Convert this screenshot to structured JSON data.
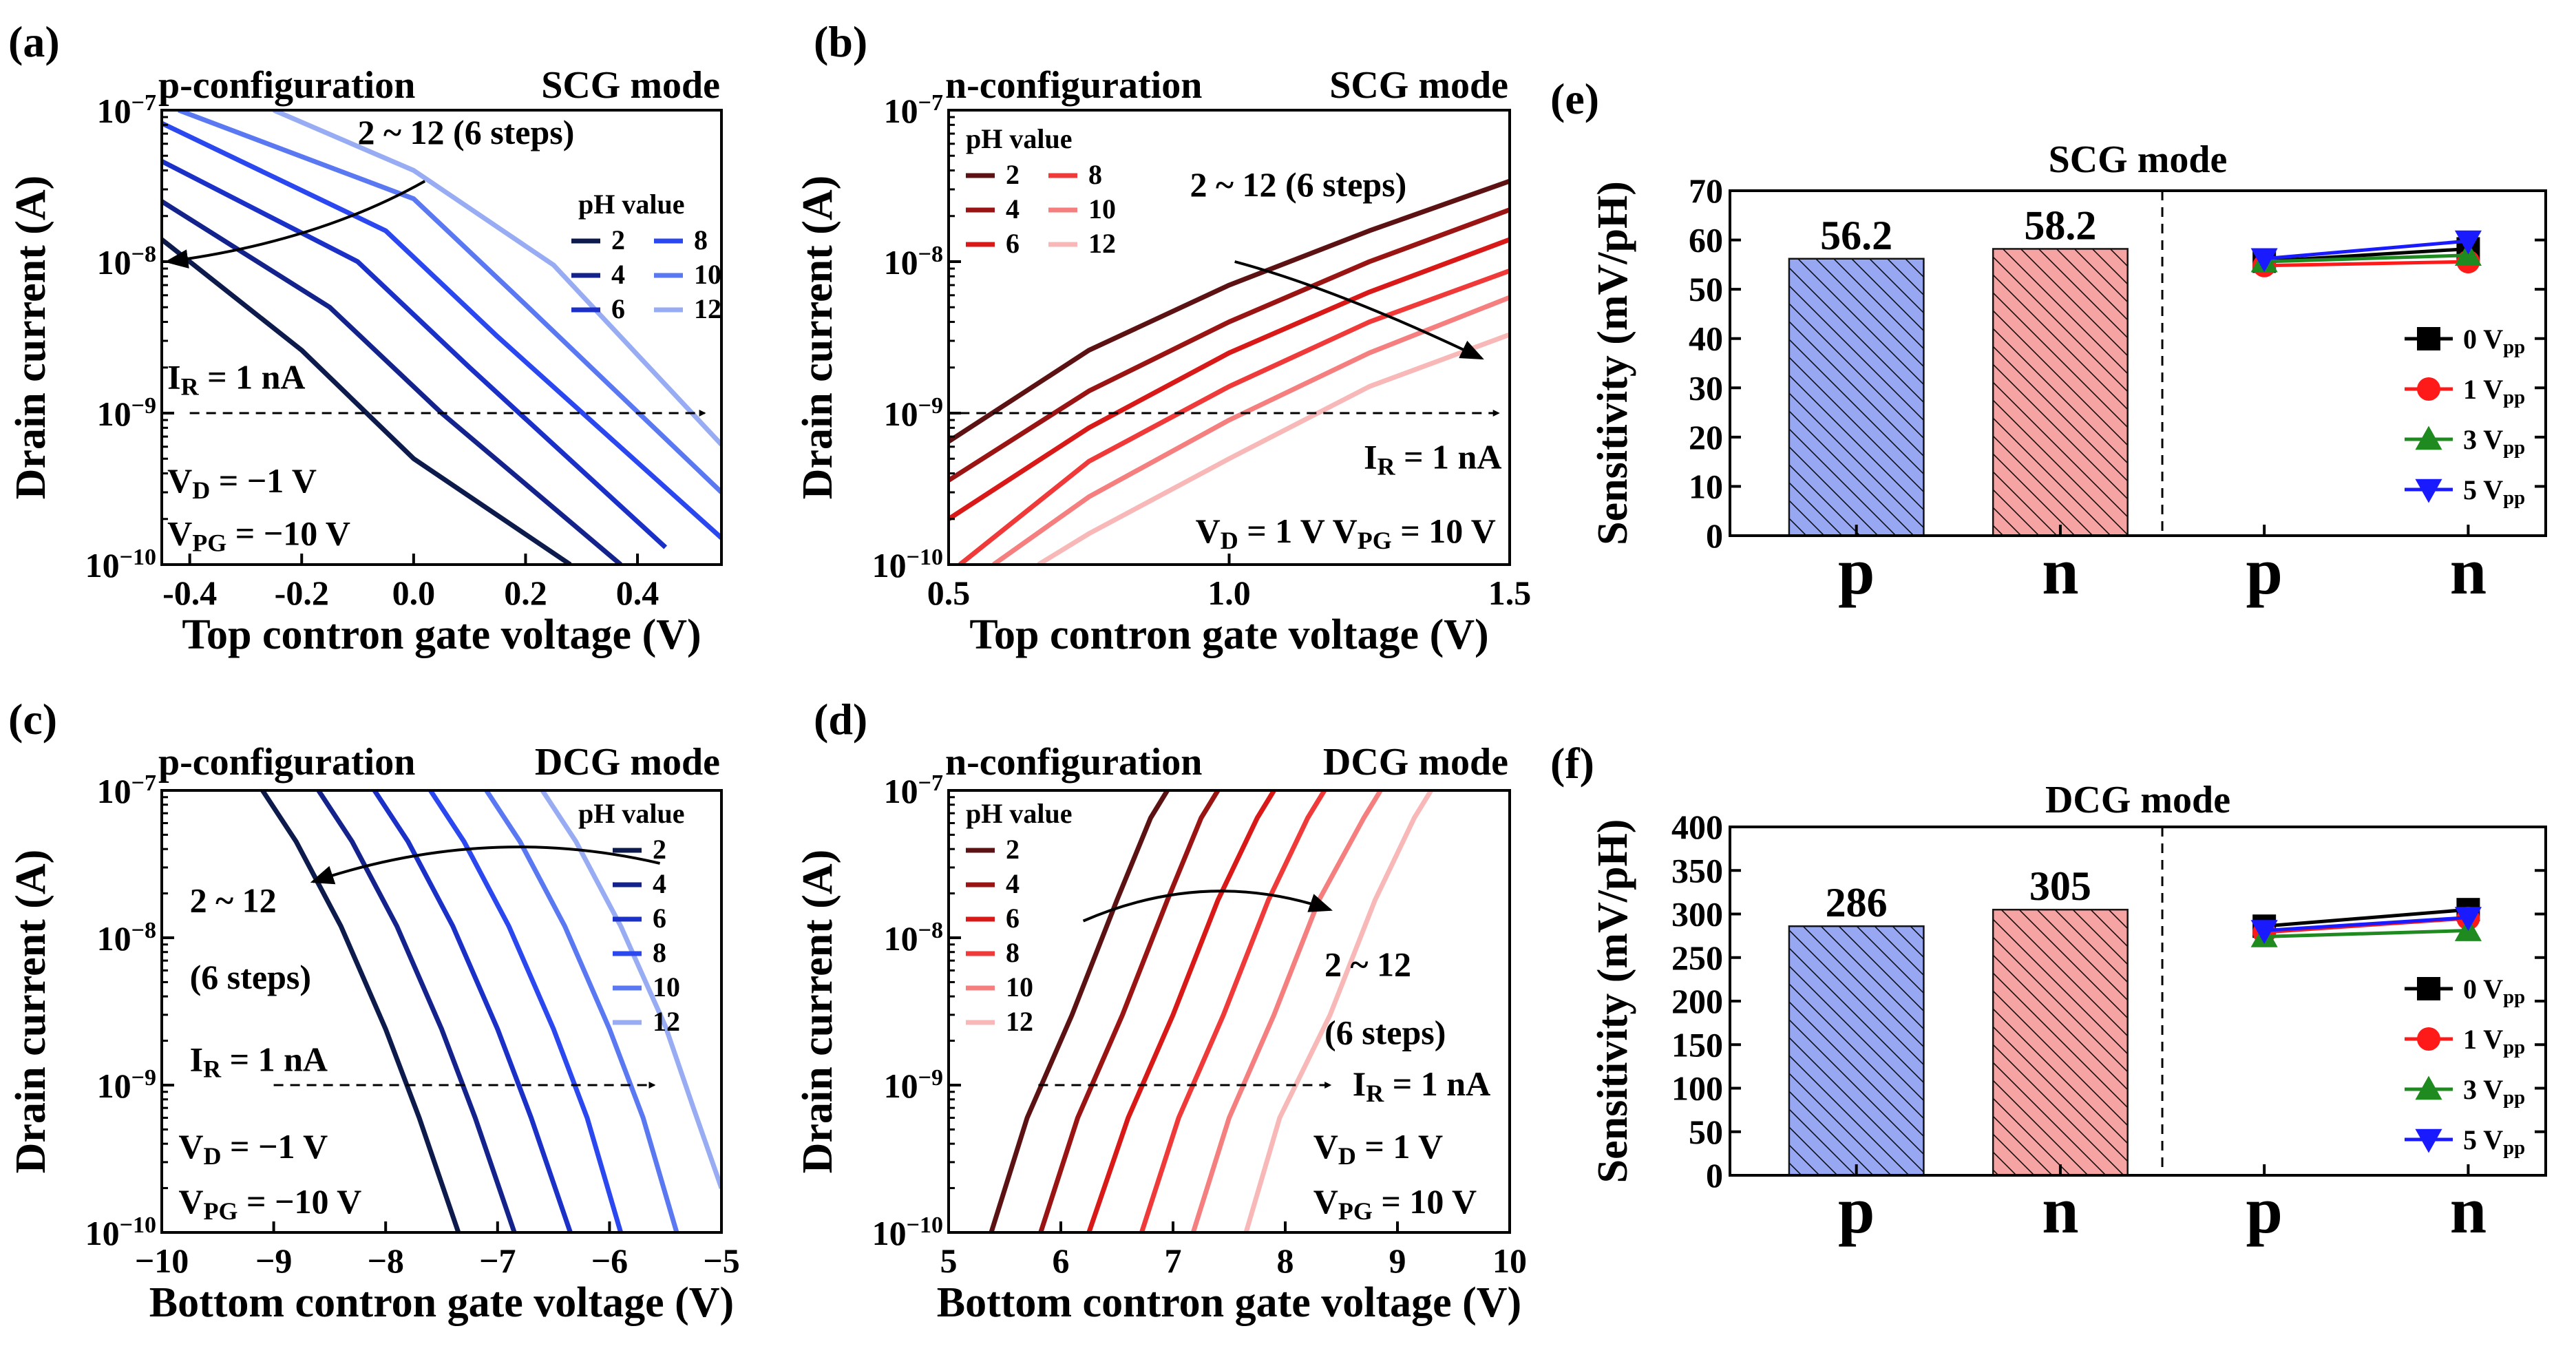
{
  "colors": {
    "p_text": "#1e22ff",
    "n_text": "#ee1111",
    "p_shades": [
      "#0d1b4c",
      "#14238b",
      "#1b30c6",
      "#2b47ef",
      "#5a78f2",
      "#98acf3"
    ],
    "n_shades": [
      "#5c1212",
      "#9a1414",
      "#d91818",
      "#f03a3a",
      "#f57f7f",
      "#f8b8b8"
    ],
    "bar_p": "#97a7f2",
    "bar_n": "#f5a3a3",
    "vpp": [
      "#000000",
      "#ff1a1a",
      "#1f8a1f",
      "#1a1aff"
    ]
  },
  "chart_data": [
    {
      "id": "a",
      "panel_label": "(a)",
      "type": "line",
      "xscale": "linear",
      "yscale": "log",
      "title_left": "p-configuration",
      "title_right": "SCG mode",
      "title_left_color": "p",
      "xlabel": "Top contron gate voltage (V)",
      "ylabel": "Drain current (A)",
      "xlim": [
        -0.45,
        0.55
      ],
      "ylim": [
        1e-10,
        1e-07
      ],
      "xticks": [
        -0.4,
        -0.2,
        0.0,
        0.2,
        0.4
      ],
      "xtick_labels": [
        "-0.4",
        "-0.2",
        "0.0",
        "0.2",
        "0.4"
      ],
      "yticks": [
        -10,
        -9,
        -8,
        -7
      ],
      "legend_title": "pH value",
      "legend": [
        "2",
        "4",
        "6",
        "8",
        "10",
        "12"
      ],
      "legend_order": [
        0,
        3,
        1,
        4,
        2,
        5
      ],
      "legend_cols": 2,
      "shades": "p",
      "series": [
        {
          "name": "2",
          "x": [
            -0.45,
            -0.2,
            0.0,
            0.28
          ],
          "y": [
            1.4e-08,
            2.6e-09,
            5e-10,
            1e-10
          ]
        },
        {
          "name": "4",
          "x": [
            -0.45,
            -0.15,
            0.05,
            0.37
          ],
          "y": [
            2.5e-08,
            5e-09,
            1e-09,
            1e-10
          ]
        },
        {
          "name": "6",
          "x": [
            -0.45,
            -0.1,
            0.1,
            0.45
          ],
          "y": [
            4.6e-08,
            1e-08,
            2e-09,
            1.3e-10
          ]
        },
        {
          "name": "8",
          "x": [
            -0.45,
            -0.05,
            0.15,
            0.55
          ],
          "y": [
            8.2e-08,
            1.6e-08,
            3.2e-09,
            1.5e-10
          ]
        },
        {
          "name": "10",
          "x": [
            -0.42,
            0.0,
            0.2,
            0.55
          ],
          "y": [
            1e-07,
            2.6e-08,
            5.2e-09,
            3e-10
          ]
        },
        {
          "name": "12",
          "x": [
            -0.25,
            0.0,
            0.25,
            0.55
          ],
          "y": [
            1e-07,
            4e-08,
            9.5e-09,
            6.2e-10
          ]
        }
      ],
      "ref_line": {
        "y": 1e-09,
        "x": [
          -0.4,
          0.52
        ]
      },
      "arrow": {
        "from": [
          0.02,
          3.4e-08
        ],
        "to": [
          -0.44,
          1e-08
        ]
      },
      "texts": [
        {
          "key": "arrow_label",
          "value": "2 ~ 12 (6 steps)",
          "x": -0.1,
          "y": 6e-08
        },
        {
          "key": "ir_label",
          "value": "I_R = 1 nA",
          "x": -0.44,
          "y": 1.45e-09
        },
        {
          "key": "vd_label",
          "value": "V_D = −1 V",
          "x": -0.44,
          "y": 3e-10
        },
        {
          "key": "vpg_label",
          "value": "V_PG = −10 V",
          "x": -0.44,
          "y": 1.35e-10
        }
      ]
    },
    {
      "id": "b",
      "panel_label": "(b)",
      "type": "line",
      "xscale": "linear",
      "yscale": "log",
      "title_left": "n-configuration",
      "title_right": "SCG mode",
      "title_left_color": "n",
      "xlabel": "Top contron gate voltage (V)",
      "ylabel": "Drain current (A)",
      "xlim": [
        0.5,
        1.5
      ],
      "ylim": [
        1e-10,
        1e-07
      ],
      "xticks": [
        0.5,
        1.0,
        1.5
      ],
      "xtick_labels": [
        "0.5",
        "1.0",
        "1.5"
      ],
      "yticks": [
        -10,
        -9,
        -8,
        -7
      ],
      "legend_title": "pH value",
      "legend": [
        "2",
        "4",
        "6",
        "8",
        "10",
        "12"
      ],
      "legend_order": [
        0,
        3,
        1,
        4,
        2,
        5
      ],
      "legend_cols": 2,
      "shades": "n",
      "series": [
        {
          "name": "2",
          "x": [
            0.5,
            0.75,
            1.0,
            1.25,
            1.5
          ],
          "y": [
            6.5e-10,
            2.6e-09,
            7e-09,
            1.6e-08,
            3.4e-08
          ]
        },
        {
          "name": "4",
          "x": [
            0.5,
            0.75,
            1.0,
            1.25,
            1.5
          ],
          "y": [
            3.6e-10,
            1.4e-09,
            4e-09,
            1e-08,
            2.2e-08
          ]
        },
        {
          "name": "6",
          "x": [
            0.5,
            0.75,
            1.0,
            1.25,
            1.5
          ],
          "y": [
            2e-10,
            8e-10,
            2.5e-09,
            6.3e-09,
            1.4e-08
          ]
        },
        {
          "name": "8",
          "x": [
            0.52,
            0.75,
            1.0,
            1.25,
            1.5
          ],
          "y": [
            1e-10,
            4.8e-10,
            1.5e-09,
            4e-09,
            8.7e-09
          ]
        },
        {
          "name": "10",
          "x": [
            0.58,
            0.75,
            1.0,
            1.25,
            1.5
          ],
          "y": [
            1e-10,
            2.8e-10,
            9e-10,
            2.5e-09,
            5.8e-09
          ]
        },
        {
          "name": "12",
          "x": [
            0.66,
            0.75,
            1.0,
            1.25,
            1.5
          ],
          "y": [
            1e-10,
            1.6e-10,
            5e-10,
            1.5e-09,
            3.3e-09
          ]
        }
      ],
      "ref_line": {
        "y": 1e-09,
        "x": [
          0.52,
          1.48
        ]
      },
      "arrow": {
        "from": [
          1.01,
          1e-08
        ],
        "to": [
          1.45,
          2.3e-09
        ]
      },
      "texts": [
        {
          "key": "arrow_label",
          "value": "2 ~ 12 (6 steps)",
          "x": 0.93,
          "y": 2.7e-08
        },
        {
          "key": "ir_label",
          "value": "I_R = 1 nA",
          "x": 1.24,
          "y": 4.3e-10
        },
        {
          "key": "vd_label",
          "value": "V_D = 1 V  V_PG =  10 V",
          "x": 0.94,
          "y": 1.4e-10
        }
      ]
    },
    {
      "id": "c",
      "panel_label": "(c)",
      "type": "line",
      "xscale": "linear",
      "yscale": "log",
      "title_left": "p-configuration",
      "title_right": "DCG mode",
      "title_left_color": "p",
      "xlabel": "Bottom contron gate voltage (V)",
      "ylabel": "Drain current (A)",
      "xlim": [
        -10,
        -5
      ],
      "ylim": [
        1e-10,
        1e-07
      ],
      "xticks": [
        -10,
        -9,
        -8,
        -7,
        -6,
        -5
      ],
      "xtick_labels": [
        "−10",
        "−9",
        "−8",
        "−7",
        "−6",
        "−5"
      ],
      "yticks": [
        -10,
        -9,
        -8,
        -7
      ],
      "legend_title": "pH value",
      "legend": [
        "2",
        "4",
        "6",
        "8",
        "10",
        "12"
      ],
      "legend_order": [
        0,
        1,
        2,
        3,
        4,
        5
      ],
      "legend_cols": 1,
      "shades": "p",
      "series": [
        {
          "name": "2",
          "x": [
            -9.1,
            -8.8,
            -8.4,
            -8.0,
            -7.7,
            -7.35
          ],
          "y": [
            1e-07,
            4.5e-08,
            1.2e-08,
            2.4e-09,
            6e-10,
            1e-10
          ]
        },
        {
          "name": "4",
          "x": [
            -8.6,
            -8.3,
            -7.9,
            -7.5,
            -7.2,
            -6.85
          ],
          "y": [
            1e-07,
            4.5e-08,
            1.2e-08,
            2.4e-09,
            6e-10,
            1e-10
          ]
        },
        {
          "name": "6",
          "x": [
            -8.1,
            -7.8,
            -7.4,
            -7.0,
            -6.7,
            -6.35
          ],
          "y": [
            1e-07,
            4.5e-08,
            1.2e-08,
            2.4e-09,
            6e-10,
            1e-10
          ]
        },
        {
          "name": "8",
          "x": [
            -7.6,
            -7.3,
            -6.9,
            -6.5,
            -6.2,
            -5.9
          ],
          "y": [
            1e-07,
            4.5e-08,
            1.2e-08,
            2.4e-09,
            6e-10,
            1e-10
          ]
        },
        {
          "name": "10",
          "x": [
            -7.1,
            -6.8,
            -6.4,
            -6.0,
            -5.7,
            -5.4
          ],
          "y": [
            1e-07,
            4.5e-08,
            1.2e-08,
            2.4e-09,
            6e-10,
            1e-10
          ]
        },
        {
          "name": "12",
          "x": [
            -6.6,
            -6.3,
            -5.9,
            -5.5,
            -5.25,
            -5.0
          ],
          "y": [
            1e-07,
            4.5e-08,
            1.2e-08,
            2.5e-09,
            7e-10,
            2e-10
          ]
        }
      ],
      "ref_line": {
        "y": 1e-09,
        "x": [
          -9.0,
          -5.6
        ]
      },
      "arrow": {
        "from": [
          -5.55,
          3.2e-08
        ],
        "to": [
          -8.65,
          2.4e-08
        ]
      },
      "arrow_ctrl": [
        -7.1,
        6e-08
      ],
      "texts": [
        {
          "key": "arrow_label",
          "value": "2 ~ 12",
          "x": -9.75,
          "y": 1.5e-08
        },
        {
          "key": "arrow_label2",
          "value": "(6 steps)",
          "x": -9.75,
          "y": 4.5e-09
        },
        {
          "key": "ir_label",
          "value": "I_R = 1 nA",
          "x": -9.75,
          "y": 1.25e-09
        },
        {
          "key": "vd_label",
          "value": "V_D = −1 V",
          "x": -9.85,
          "y": 3.2e-10
        },
        {
          "key": "vpg_label",
          "value": "V_PG = −10 V",
          "x": -9.85,
          "y": 1.35e-10
        }
      ]
    },
    {
      "id": "d",
      "panel_label": "(d)",
      "type": "line",
      "xscale": "linear",
      "yscale": "log",
      "title_left": "n-configuration",
      "title_right": "DCG mode",
      "title_left_color": "n",
      "xlabel": "Bottom contron gate voltage (V)",
      "ylabel": "Drain current (A)",
      "xlim": [
        5,
        10
      ],
      "ylim": [
        1e-10,
        1e-07
      ],
      "xticks": [
        5,
        6,
        7,
        8,
        9,
        10
      ],
      "xtick_labels": [
        "5",
        "6",
        "7",
        "8",
        "9",
        "10"
      ],
      "yticks": [
        -10,
        -9,
        -8,
        -7
      ],
      "legend_title": "pH value",
      "legend": [
        "2",
        "4",
        "6",
        "8",
        "10",
        "12"
      ],
      "legend_order": [
        0,
        1,
        2,
        3,
        4,
        5
      ],
      "legend_cols": 1,
      "shades": "n",
      "series": [
        {
          "name": "2",
          "x": [
            5.38,
            5.7,
            6.1,
            6.5,
            6.8,
            6.95
          ],
          "y": [
            1e-10,
            6e-10,
            3e-09,
            1.8e-08,
            6.5e-08,
            1e-07
          ]
        },
        {
          "name": "4",
          "x": [
            5.82,
            6.15,
            6.55,
            6.95,
            7.25,
            7.4
          ],
          "y": [
            1e-10,
            6e-10,
            3e-09,
            1.8e-08,
            6.5e-08,
            1e-07
          ]
        },
        {
          "name": "6",
          "x": [
            6.25,
            6.6,
            7.0,
            7.4,
            7.75,
            7.9
          ],
          "y": [
            1e-10,
            6e-10,
            3e-09,
            1.8e-08,
            6.5e-08,
            1e-07
          ]
        },
        {
          "name": "8",
          "x": [
            6.72,
            7.05,
            7.45,
            7.85,
            8.2,
            8.35
          ],
          "y": [
            1e-10,
            6e-10,
            3e-09,
            1.8e-08,
            6.5e-08,
            1e-07
          ]
        },
        {
          "name": "10",
          "x": [
            7.18,
            7.5,
            7.9,
            8.3,
            8.7,
            8.85
          ],
          "y": [
            1e-10,
            6e-10,
            3e-09,
            1.8e-08,
            6.5e-08,
            1e-07
          ]
        },
        {
          "name": "12",
          "x": [
            7.65,
            7.95,
            8.4,
            8.8,
            9.15,
            9.3
          ],
          "y": [
            1e-10,
            6e-10,
            3e-09,
            1.8e-08,
            6.5e-08,
            1e-07
          ]
        }
      ],
      "ref_line": {
        "y": 1e-09,
        "x": [
          5.8,
          8.4
        ]
      },
      "arrow": {
        "from": [
          6.2,
          1.3e-08
        ],
        "to": [
          8.4,
          1.55e-08
        ]
      },
      "arrow_ctrl": [
        7.3,
        3e-08
      ],
      "texts": [
        {
          "key": "arrow_label",
          "value": "2 ~ 12",
          "x": 8.35,
          "y": 5.5e-09
        },
        {
          "key": "arrow_label2",
          "value": "(6 steps)",
          "x": 8.35,
          "y": 1.9e-09
        },
        {
          "key": "ir_label",
          "value": "I_R = 1 nA",
          "x": 8.6,
          "y": 8.5e-10
        },
        {
          "key": "vd_label",
          "value": "V_D =  1 V",
          "x": 8.25,
          "y": 3.2e-10
        },
        {
          "key": "vpg_label",
          "value": "V_PG =  10 V",
          "x": 8.25,
          "y": 1.35e-10
        }
      ]
    },
    {
      "id": "e",
      "panel_label": "(e)",
      "type": "bar",
      "title": "SCG mode",
      "ylabel": "Sensitivity (mV/pH)",
      "ylim": [
        0,
        70
      ],
      "yticks": [
        0,
        10,
        20,
        30,
        40,
        50,
        60,
        70
      ],
      "categories": [
        "p",
        "n",
        "p",
        "n"
      ],
      "bars": [
        {
          "name": "p",
          "value": 56.2,
          "label": "56.2"
        },
        {
          "name": "n",
          "value": 58.2,
          "label": "58.2"
        }
      ],
      "vpp_series": [
        {
          "name": "0 V_pp",
          "values": [
            55.7,
            58.2
          ]
        },
        {
          "name": "1 V_pp",
          "values": [
            54.8,
            55.6
          ]
        },
        {
          "name": "3 V_pp",
          "values": [
            55.6,
            56.9
          ]
        },
        {
          "name": "5 V_pp",
          "values": [
            56.2,
            59.8
          ]
        }
      ]
    },
    {
      "id": "f",
      "panel_label": "(f)",
      "type": "bar",
      "title": "DCG mode",
      "ylabel": "Sensitivity (mV/pH)",
      "ylim": [
        0,
        400
      ],
      "yticks": [
        0,
        50,
        100,
        150,
        200,
        250,
        300,
        350,
        400
      ],
      "categories": [
        "p",
        "n",
        "p",
        "n"
      ],
      "bars": [
        {
          "name": "p",
          "value": 286,
          "label": "286"
        },
        {
          "name": "n",
          "value": 305,
          "label": "305"
        }
      ],
      "vpp_series": [
        {
          "name": "0 V_pp",
          "values": [
            286,
            305
          ]
        },
        {
          "name": "1 V_pp",
          "values": [
            279,
            295
          ]
        },
        {
          "name": "3 V_pp",
          "values": [
            274,
            281
          ]
        },
        {
          "name": "5 V_pp",
          "values": [
            281,
            296
          ]
        }
      ]
    }
  ]
}
